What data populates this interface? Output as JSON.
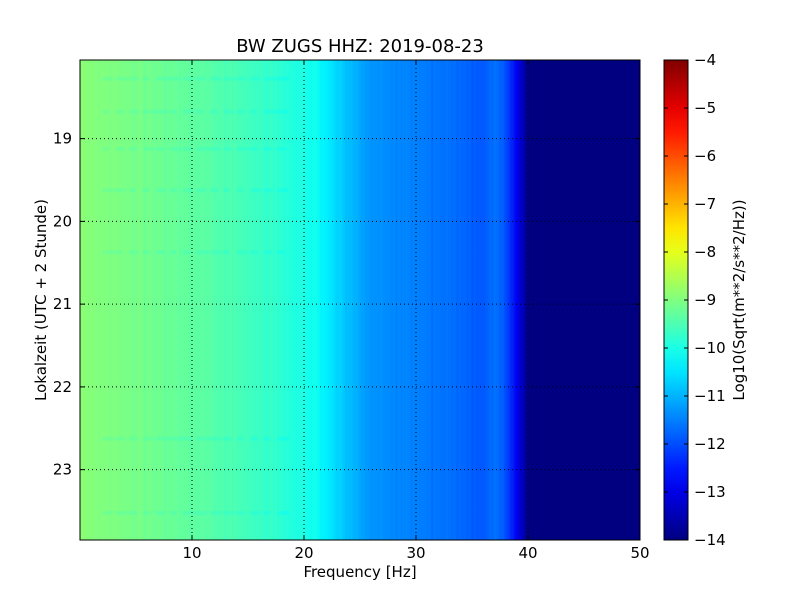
{
  "chart_data": {
    "type": "heatmap",
    "title": "BW ZUGS HHZ: 2019-08-23",
    "xlabel": "Frequency [Hz]",
    "ylabel": "Lokalzeit (UTC + 2 Stunde)",
    "xlim": [
      0,
      50
    ],
    "ylim": [
      18.05,
      23.85
    ],
    "y_inverted": true,
    "x_ticks": [
      10,
      20,
      30,
      40,
      50
    ],
    "x_tick_labels": [
      "10",
      "20",
      "30",
      "40",
      "50"
    ],
    "y_ticks": [
      19,
      20,
      21,
      22,
      23
    ],
    "y_tick_labels": [
      "19",
      "20",
      "21",
      "22",
      "23"
    ],
    "grid": true,
    "colormap": "jet",
    "colorbar": {
      "label": "Log10(Sqrt(m**2/s**2/Hz))",
      "range": [
        -14,
        -4
      ],
      "ticks": [
        -4,
        -5,
        -6,
        -7,
        -8,
        -9,
        -10,
        -11,
        -12,
        -13,
        -14
      ],
      "tick_labels": [
        "−4",
        "−5",
        "−6",
        "−7",
        "−8",
        "−9",
        "−10",
        "−11",
        "−12",
        "−13",
        "−14"
      ]
    },
    "frequency_profile": {
      "frequency_hz": [
        0,
        5,
        10,
        15,
        20,
        21,
        22,
        24,
        26,
        30,
        34,
        36,
        37,
        38,
        39,
        40,
        50
      ],
      "log10_amplitude": [
        -8.9,
        -9.1,
        -9.3,
        -9.6,
        -10.0,
        -10.1,
        -10.4,
        -10.9,
        -11.3,
        -11.5,
        -11.7,
        -11.9,
        -11.6,
        -12.0,
        -12.9,
        -14.0,
        -14.0
      ]
    }
  }
}
